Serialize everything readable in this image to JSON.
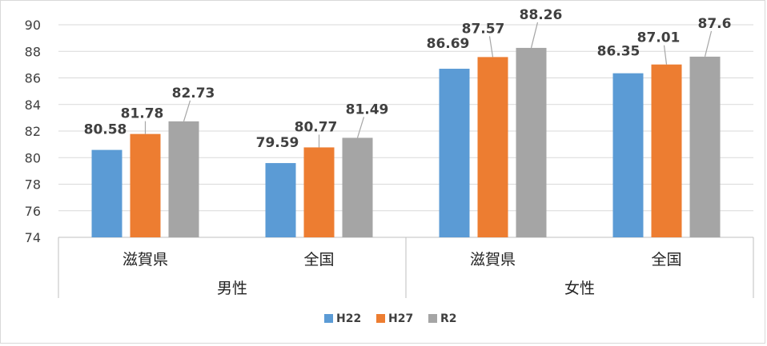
{
  "chart_data": {
    "type": "bar",
    "groups": [
      {
        "name": "男性",
        "categories": [
          "滋賀県",
          "全国"
        ]
      },
      {
        "name": "女性",
        "categories": [
          "滋賀県",
          "全国"
        ]
      }
    ],
    "categories": [
      "滋賀県",
      "全国",
      "滋賀県",
      "全国"
    ],
    "series": [
      {
        "name": "H22",
        "color": "#5b9bd5",
        "values": [
          80.58,
          79.59,
          86.69,
          86.35
        ]
      },
      {
        "name": "H27",
        "color": "#ed7d31",
        "values": [
          81.78,
          80.77,
          87.57,
          87.01
        ]
      },
      {
        "name": "R2",
        "color": "#a5a5a5",
        "values": [
          82.73,
          81.49,
          88.26,
          87.6
        ]
      }
    ],
    "data_labels": [
      [
        "80.58",
        "79.59",
        "86.69",
        "86.35"
      ],
      [
        "81.78",
        "80.77",
        "87.57",
        "87.01"
      ],
      [
        "82.73",
        "81.49",
        "88.26",
        "87.6"
      ]
    ],
    "yticks": [
      "74",
      "76",
      "78",
      "80",
      "82",
      "84",
      "86",
      "88",
      "90"
    ],
    "ylim": [
      74,
      90
    ],
    "grid": true,
    "legend_position": "bottom",
    "title": "",
    "xlabel": "",
    "ylabel": ""
  }
}
